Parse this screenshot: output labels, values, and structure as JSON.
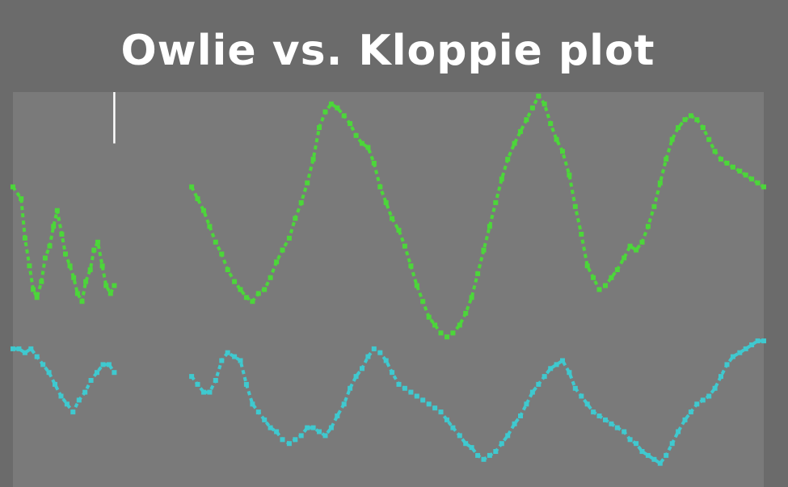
{
  "chart_data": {
    "type": "line",
    "title": "Owlie vs. Kloppie plot",
    "xlabel": "",
    "ylabel": "",
    "grid": false,
    "legend": "none",
    "background_color": "#6b6b6b",
    "plot_background_color": "#7a7a7a",
    "xlim": [
      0,
      100
    ],
    "ylim": [
      0,
      100
    ],
    "marker_line": {
      "x": 13.5,
      "y_from": 87,
      "y_to": 100,
      "color": "#ffffff"
    },
    "series": [
      {
        "color": "#4cd63a",
        "segments": [
          {
            "x": [
              0.0,
              1.1,
              1.6,
              2.2,
              2.7,
              3.2,
              3.8,
              4.3,
              4.9,
              5.4,
              5.9,
              6.5,
              7.0,
              7.6,
              8.1,
              8.6,
              9.2,
              9.7,
              10.3,
              10.8,
              11.3,
              11.9,
              12.4,
              13.0,
              13.5
            ],
            "y": [
              76.0,
              73.0,
              63.0,
              56.0,
              50.0,
              48.0,
              52.0,
              58.0,
              61.0,
              66.0,
              70.0,
              64.0,
              59.0,
              56.0,
              53.0,
              49.0,
              47.0,
              52.0,
              55.0,
              60.0,
              62.0,
              56.0,
              51.0,
              49.0,
              51.0
            ]
          },
          {
            "x": [
              23.8,
              24.6,
              25.4,
              26.2,
              27.0,
              27.8,
              28.6,
              29.5,
              30.3,
              31.1,
              31.9,
              32.7,
              33.5,
              34.3,
              35.1,
              35.9,
              36.8,
              37.6,
              38.4,
              39.2,
              40.0,
              40.8,
              41.6,
              42.4,
              43.2,
              44.1,
              44.9,
              45.7,
              46.5,
              47.3,
              48.1,
              48.9,
              49.7,
              50.5,
              51.4,
              52.2,
              53.0,
              53.8,
              54.6,
              55.4,
              56.2,
              57.0,
              57.8,
              58.6,
              59.5,
              60.3,
              61.1,
              61.9,
              62.7,
              63.5,
              64.3,
              65.1,
              65.9,
              66.8,
              67.6,
              68.4,
              69.2,
              70.0,
              70.8,
              71.6,
              72.4,
              73.2,
              74.1,
              74.9,
              75.7,
              76.5,
              77.3,
              78.1,
              78.9,
              79.7,
              80.5,
              81.4,
              82.2,
              83.0,
              83.8,
              84.6,
              85.4,
              86.2,
              87.0,
              87.8,
              88.6,
              89.5,
              90.3,
              91.1,
              91.9,
              92.7,
              93.5,
              94.3,
              95.1,
              95.9,
              96.8,
              97.6,
              98.4,
              99.2,
              100.0
            ],
            "y": [
              76.0,
              73.0,
              70.0,
              66.0,
              62.0,
              59.0,
              55.0,
              52.0,
              50.0,
              48.0,
              47.0,
              49.0,
              50.0,
              53.0,
              57.0,
              60.0,
              63.0,
              68.0,
              72.0,
              77.0,
              83.0,
              91.0,
              95.0,
              97.0,
              96.0,
              94.0,
              92.0,
              89.0,
              87.0,
              86.0,
              82.0,
              76.0,
              72.0,
              68.0,
              65.0,
              61.0,
              56.0,
              51.0,
              47.0,
              43.0,
              41.0,
              39.0,
              38.0,
              39.0,
              41.0,
              44.0,
              48.0,
              54.0,
              60.0,
              66.0,
              72.0,
              78.0,
              83.0,
              87.0,
              90.0,
              93.0,
              96.0,
              99.0,
              97.0,
              92.0,
              88.0,
              85.0,
              79.0,
              71.0,
              64.0,
              56.0,
              53.0,
              50.0,
              51.0,
              53.0,
              55.0,
              58.0,
              61.0,
              60.0,
              62.0,
              66.0,
              71.0,
              77.0,
              83.0,
              88.0,
              91.0,
              93.0,
              94.0,
              93.0,
              91.0,
              88.0,
              85.0,
              83.0,
              82.0,
              81.0,
              80.0,
              79.0,
              78.0,
              77.0,
              76.0
            ]
          }
        ]
      },
      {
        "color": "#3fc9cf",
        "segments": [
          {
            "x": [
              0.0,
              0.8,
              1.6,
              2.4,
              3.2,
              4.0,
              4.8,
              5.6,
              6.4,
              7.2,
              8.0,
              8.8,
              9.6,
              10.4,
              11.2,
              12.0,
              12.8,
              13.5
            ],
            "y": [
              35.0,
              35.0,
              34.0,
              35.0,
              33.0,
              31.0,
              29.0,
              26.0,
              23.0,
              21.0,
              19.0,
              22.0,
              24.0,
              27.0,
              29.0,
              31.0,
              31.0,
              29.0
            ]
          },
          {
            "x": [
              23.8,
              24.6,
              25.4,
              26.2,
              27.0,
              27.8,
              28.6,
              29.5,
              30.3,
              31.1,
              31.9,
              32.7,
              33.5,
              34.3,
              35.1,
              35.9,
              36.8,
              37.6,
              38.4,
              39.2,
              40.0,
              40.8,
              41.6,
              42.4,
              43.2,
              44.1,
              44.9,
              45.7,
              46.5,
              47.3,
              48.1,
              48.9,
              49.7,
              50.5,
              51.4,
              52.2,
              53.0,
              53.8,
              54.6,
              55.4,
              56.2,
              57.0,
              57.8,
              58.6,
              59.5,
              60.3,
              61.1,
              61.9,
              62.7,
              63.5,
              64.3,
              65.1,
              65.9,
              66.8,
              67.6,
              68.4,
              69.2,
              70.0,
              70.8,
              71.6,
              72.4,
              73.2,
              74.1,
              74.9,
              75.7,
              76.5,
              77.3,
              78.1,
              78.9,
              79.7,
              80.5,
              81.4,
              82.2,
              83.0,
              83.8,
              84.6,
              85.4,
              86.2,
              87.0,
              87.8,
              88.6,
              89.5,
              90.3,
              91.1,
              91.9,
              92.7,
              93.5,
              94.3,
              95.1,
              95.9,
              96.8,
              97.6,
              98.4,
              99.2,
              100.0
            ],
            "y": [
              28.0,
              26.0,
              24.0,
              24.0,
              27.0,
              32.0,
              34.0,
              33.0,
              32.0,
              26.0,
              21.0,
              19.0,
              17.0,
              15.0,
              14.0,
              12.0,
              11.0,
              12.0,
              13.0,
              15.0,
              15.0,
              14.0,
              13.0,
              15.0,
              18.0,
              21.0,
              25.0,
              28.0,
              30.0,
              33.0,
              35.0,
              34.0,
              32.0,
              29.0,
              26.0,
              25.0,
              24.0,
              23.0,
              22.0,
              21.0,
              20.0,
              19.0,
              17.0,
              15.0,
              13.0,
              11.0,
              10.0,
              8.0,
              7.0,
              8.0,
              9.0,
              11.0,
              13.0,
              16.0,
              18.0,
              21.0,
              24.0,
              26.0,
              28.0,
              30.0,
              31.0,
              32.0,
              29.0,
              25.0,
              23.0,
              21.0,
              19.0,
              18.0,
              17.0,
              16.0,
              15.0,
              14.0,
              12.0,
              11.0,
              9.0,
              8.0,
              7.0,
              6.0,
              8.0,
              11.0,
              14.0,
              17.0,
              19.0,
              21.0,
              22.0,
              23.0,
              25.0,
              28.0,
              31.0,
              33.0,
              34.0,
              35.0,
              36.0,
              37.0,
              37.0
            ]
          }
        ]
      }
    ]
  }
}
